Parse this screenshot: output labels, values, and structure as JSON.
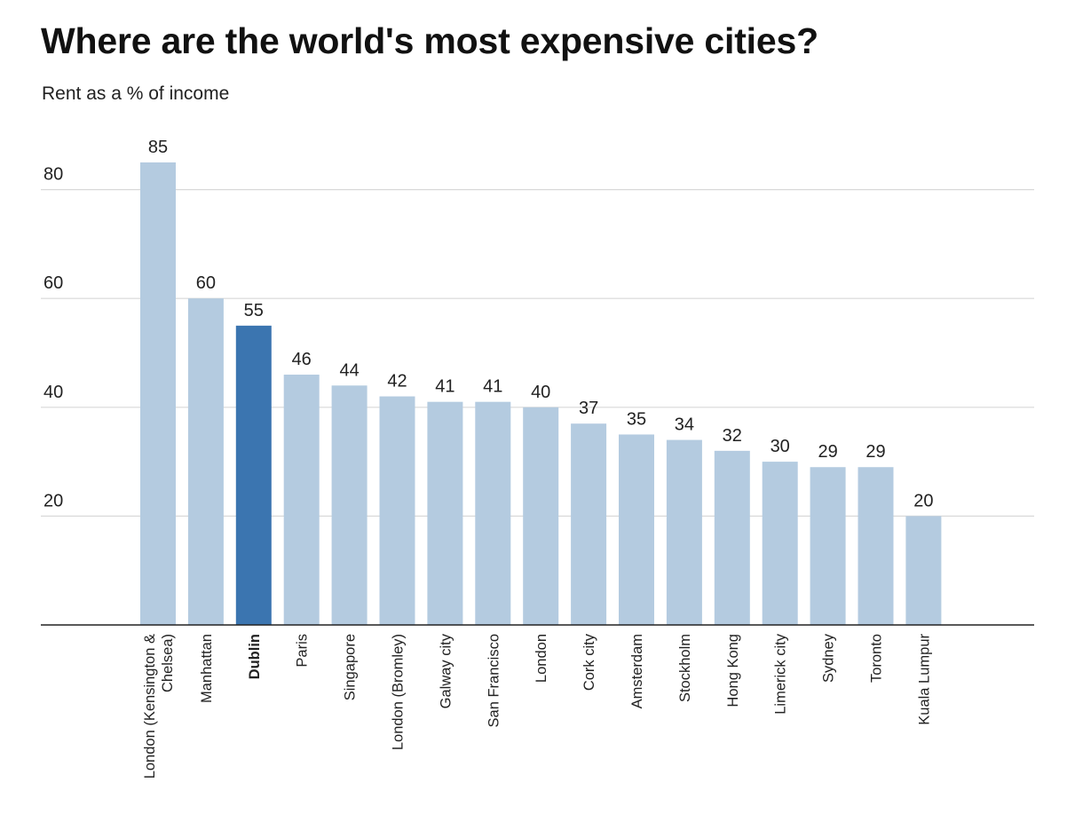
{
  "chart_data": {
    "type": "bar",
    "title": "Where are the world's most expensive cities?",
    "subtitle": "Rent as a % of income",
    "xlabel": "",
    "ylabel": "Rent as a % of income",
    "ylim": [
      0,
      90
    ],
    "yticks": [
      20,
      40,
      60,
      80
    ],
    "grid": true,
    "categories": [
      "London (Kensington & Chelsea)",
      "Manhattan",
      "Dublin",
      "Paris",
      "Singapore",
      "London (Bromley)",
      "Galway city",
      "San Francisco",
      "London",
      "Cork city",
      "Amsterdam",
      "Stockholm",
      "Hong Kong",
      "Limerick city",
      "Sydney",
      "Toronto",
      "Kuala Lumpur"
    ],
    "category_lines": [
      [
        "London (Kensington &",
        "Chelsea)"
      ],
      [
        "Manhattan"
      ],
      [
        "Dublin"
      ],
      [
        "Paris"
      ],
      [
        "Singapore"
      ],
      [
        "London (Bromley)"
      ],
      [
        "Galway city"
      ],
      [
        "San Francisco"
      ],
      [
        "London"
      ],
      [
        "Cork city"
      ],
      [
        "Amsterdam"
      ],
      [
        "Stockholm"
      ],
      [
        "Hong Kong"
      ],
      [
        "Limerick city"
      ],
      [
        "Sydney"
      ],
      [
        "Toronto"
      ],
      [
        "Kuala Lumpur"
      ]
    ],
    "values": [
      85,
      60,
      55,
      46,
      44,
      42,
      41,
      41,
      40,
      37,
      35,
      34,
      32,
      30,
      29,
      29,
      20
    ],
    "highlight": "Dublin",
    "colors": {
      "bar": "#b4cbe0",
      "highlight": "#3b75b0",
      "grid": "#d9d9d9",
      "axis": "#222222",
      "text": "#222222"
    }
  }
}
